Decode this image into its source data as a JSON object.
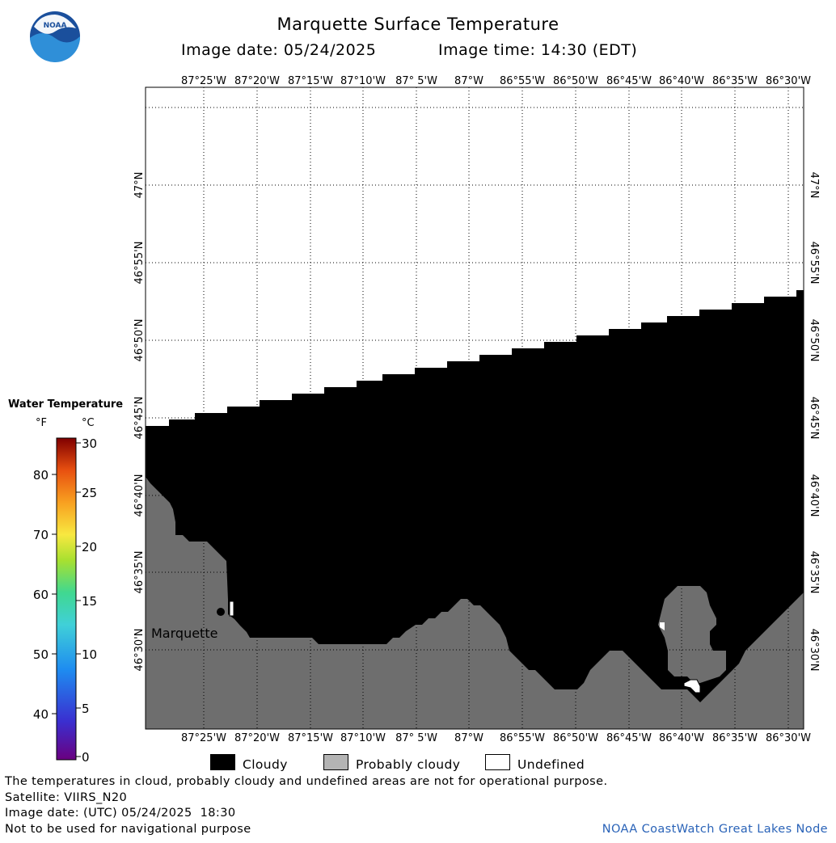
{
  "header": {
    "title": "Marquette Surface Temperature",
    "image_date": "Image date: 05/24/2025",
    "image_time": "Image time: 14:30 (EDT)"
  },
  "logo": {
    "text": "NOAA",
    "icon": "noaa-logo"
  },
  "map": {
    "lon_labels": [
      "87°25'W",
      "87°20'W",
      "87°15'W",
      "87°10'W",
      "87° 5'W",
      "87°W",
      "86°55'W",
      "86°50'W",
      "86°45'W",
      "86°40'W",
      "86°35'W",
      "86°30'W"
    ],
    "lat_labels": [
      "47°N",
      "46°55'N",
      "46°50'N",
      "46°45'N",
      "46°40'N",
      "46°35'N",
      "46°30'N"
    ],
    "place_label": "Marquette",
    "colors": {
      "cloudy": "#000000",
      "probably_cloudy": "#6e6e6e",
      "undefined": "#ffffff"
    }
  },
  "colorbar": {
    "title": "Water Temperature",
    "unit_f": "°F",
    "unit_c": "°C",
    "f_ticks": [
      "80",
      "70",
      "60",
      "50",
      "40"
    ],
    "c_ticks": [
      "30",
      "25",
      "20",
      "15",
      "10",
      "5",
      "0"
    ]
  },
  "legend": {
    "cloudy": "Cloudy",
    "probably_cloudy": "Probably cloudy",
    "undefined": "Undefined"
  },
  "footer": {
    "disclaimer": "The temperatures in cloud, probably cloudy and undefined areas are not for operational purpose.",
    "satellite": "Satellite: VIIRS_N20",
    "utc_date": "Image date: (UTC) 05/24/2025  18:30",
    "nav_warning": "Not to be used for navigational purpose",
    "credit": "NOAA CoastWatch Great Lakes Node"
  }
}
